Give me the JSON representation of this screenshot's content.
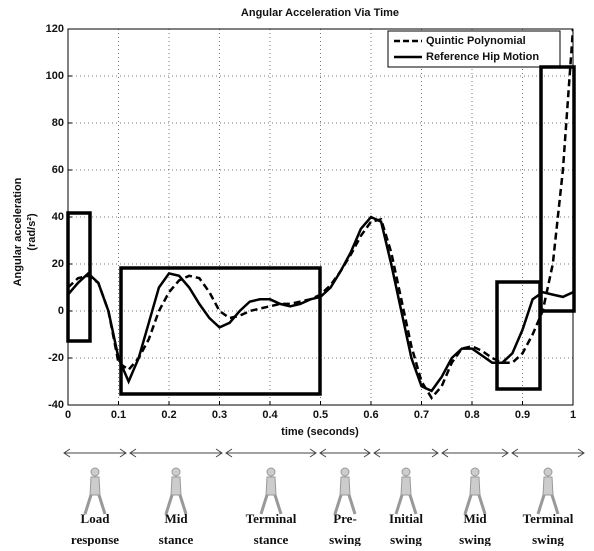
{
  "chart_data": {
    "type": "line",
    "title": "Angular Acceleration Via Time",
    "xlabel": "time (seconds)",
    "ylabel": [
      "Angular acceleration",
      "(rad/s²)"
    ],
    "x": [
      0,
      0.02,
      0.04,
      0.06,
      0.08,
      0.1,
      0.12,
      0.14,
      0.16,
      0.18,
      0.2,
      0.22,
      0.24,
      0.26,
      0.28,
      0.3,
      0.32,
      0.34,
      0.36,
      0.38,
      0.4,
      0.42,
      0.44,
      0.46,
      0.48,
      0.5,
      0.52,
      0.54,
      0.56,
      0.58,
      0.6,
      0.62,
      0.64,
      0.66,
      0.68,
      0.7,
      0.72,
      0.74,
      0.76,
      0.78,
      0.8,
      0.82,
      0.84,
      0.86,
      0.88,
      0.9,
      0.92,
      0.94,
      0.96,
      0.98,
      1
    ],
    "series": [
      {
        "name": "Quintic Polynomial",
        "color": "#000000",
        "dash": true,
        "values": [
          10,
          14,
          15,
          12,
          0,
          -22,
          -25,
          -20,
          -12,
          0,
          8,
          13,
          15,
          14,
          8,
          0,
          -3,
          -2,
          0,
          1,
          2,
          3,
          3,
          4,
          5,
          7,
          11,
          17,
          24,
          32,
          38,
          39,
          25,
          5,
          -15,
          -30,
          -37,
          -32,
          -22,
          -16,
          -15,
          -17,
          -20,
          -22,
          -22,
          -18,
          -10,
          0,
          20,
          60,
          120
        ]
      },
      {
        "name": "Reference Hip Motion",
        "color": "#000000",
        "dash": false,
        "values": [
          7,
          12,
          16,
          12,
          0,
          -20,
          -30,
          -20,
          -5,
          10,
          16,
          15,
          10,
          3,
          -3,
          -7,
          -5,
          0,
          4,
          5,
          5,
          3,
          2,
          3,
          5,
          6,
          10,
          17,
          25,
          35,
          40,
          38,
          20,
          0,
          -20,
          -32,
          -34,
          -28,
          -20,
          -16,
          -16,
          -19,
          -22,
          -22,
          -18,
          -8,
          5,
          8,
          7,
          6,
          8
        ]
      }
    ],
    "xlim": [
      0,
      1
    ],
    "xticks": [
      0,
      0.1,
      0.2,
      0.3,
      0.4,
      0.5,
      0.6,
      0.7,
      0.8,
      0.9,
      1
    ],
    "ylim": [
      -40,
      120
    ],
    "yticks": [
      -40,
      -20,
      0,
      20,
      40,
      60,
      80,
      100,
      120
    ],
    "grid": true,
    "legend": "upper right",
    "phases": [
      [
        "Load",
        "response"
      ],
      [
        "Mid",
        "stance"
      ],
      [
        "Terminal",
        "stance"
      ],
      [
        "Pre-",
        "swing"
      ],
      [
        "Initial",
        "swing"
      ],
      [
        "Mid",
        "swing"
      ],
      [
        "Terminal",
        "swing"
      ]
    ]
  }
}
